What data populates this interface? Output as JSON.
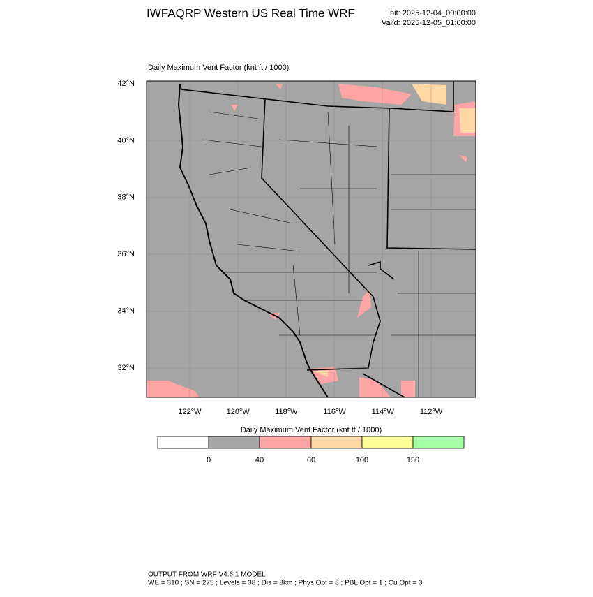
{
  "header": {
    "title": "IWFAQRP Western US Real Time WRF",
    "init": "Init: 2025-12-04_00:00:00",
    "valid": "Valid: 2025-12-05_01:00:00"
  },
  "map": {
    "title": "Daily Maximum Vent Factor   (knt ft / 1000)",
    "lat_labels": [
      "42°N",
      "40°N",
      "38°N",
      "36°N",
      "34°N",
      "32°N"
    ],
    "lon_labels": [
      "122°W",
      "120°W",
      "118°W",
      "116°W",
      "114°W",
      "112°W"
    ]
  },
  "colorbar": {
    "title": "Daily Maximum Vent Factor  (knt ft / 1000)",
    "labels": [
      "0",
      "40",
      "60",
      "100",
      "150"
    ]
  },
  "footer": {
    "lines": [
      "OUTPUT FROM WRF V4.6.1 MODEL",
      "WE = 310 ; SN = 275 ; Levels = 38 ; Dis = 8km ; Phys Opt = 8 ; PBL Opt = 1 ; Cu Opt = 3"
    ]
  }
}
